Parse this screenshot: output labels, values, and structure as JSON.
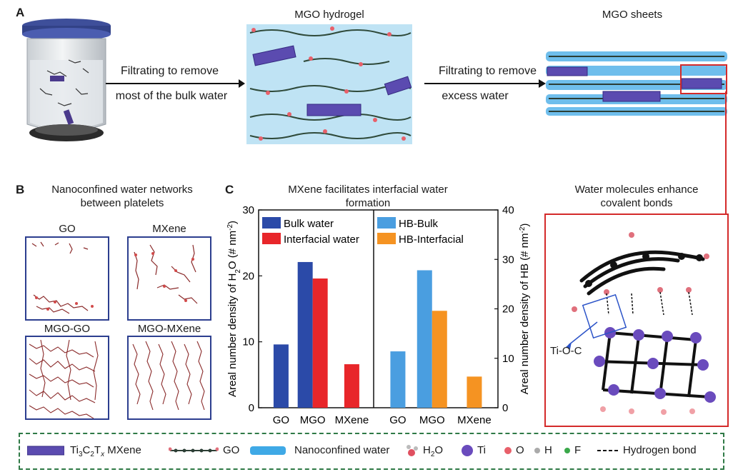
{
  "panel_a": {
    "letter": "A",
    "hydrogel_title": "MGO hydrogel",
    "sheets_title": "MGO sheets",
    "arrow1_line1": "Filtrating to remove",
    "arrow1_line2": "most of the bulk water",
    "arrow2_line1": "Filtrating to remove",
    "arrow2_line2": "excess water"
  },
  "panel_b": {
    "letter": "B",
    "title_line1": "Nanoconfined water networks",
    "title_line2": "between platelets",
    "boxes": [
      "GO",
      "MXene",
      "MGO-GO",
      "MGO-MXene"
    ]
  },
  "panel_c": {
    "letter": "C",
    "title_line1": "MXene facilitates interfacial water",
    "title_line2": "formation"
  },
  "panel_right": {
    "title_line1": "Water molecules enhance",
    "title_line2": "covalent bonds",
    "bond_label": "Ti-O-C"
  },
  "chart_data": [
    {
      "type": "bar",
      "title": "",
      "categories": [
        "GO",
        "MGO",
        "MXene"
      ],
      "series": [
        {
          "name": "Bulk water",
          "color": "#2b4aa8",
          "values": [
            9.6,
            22.1,
            null
          ]
        },
        {
          "name": "Interfacial water",
          "color": "#e8262a",
          "values": [
            null,
            19.6,
            6.6
          ]
        }
      ],
      "ylabel_main": "Areal number density of H",
      "ylabel_sub": "2",
      "ylabel_rest": "O (# nm",
      "ylabel_sup": "-2",
      "ylabel_end": ")",
      "ylim": [
        0,
        30
      ],
      "yticks": [
        "0",
        "10",
        "20",
        "30"
      ]
    },
    {
      "type": "bar",
      "title": "",
      "categories": [
        "GO",
        "MGO",
        "MXene"
      ],
      "series": [
        {
          "name": "HB-Bulk",
          "color": "#4a9ee0",
          "values": [
            11.4,
            27.8,
            null
          ]
        },
        {
          "name": "HB-Interfacial",
          "color": "#f59322",
          "values": [
            null,
            19.6,
            6.3
          ]
        }
      ],
      "ylabel_main": "Areal number density of HB",
      "ylabel_rest": " (# nm",
      "ylabel_sup": "-2",
      "ylabel_end": ")",
      "ylim": [
        0,
        40
      ],
      "yticks": [
        "0",
        "10",
        "20",
        "30",
        "40"
      ]
    }
  ],
  "legend": {
    "mxene_a": "Ti",
    "mxene_a_sub": "3",
    "mxene_b": "C",
    "mxene_b_sub": "2",
    "mxene_c": "T",
    "mxene_c_sub": "x",
    "mxene_d": " MXene",
    "go": "GO",
    "water": "Nanoconfined water",
    "h2o_a": "H",
    "h2o_sub": "2",
    "h2o_b": "O",
    "ti": "Ti",
    "o": "O",
    "h": "H",
    "f": "F",
    "hb": "Hydrogen bond"
  }
}
